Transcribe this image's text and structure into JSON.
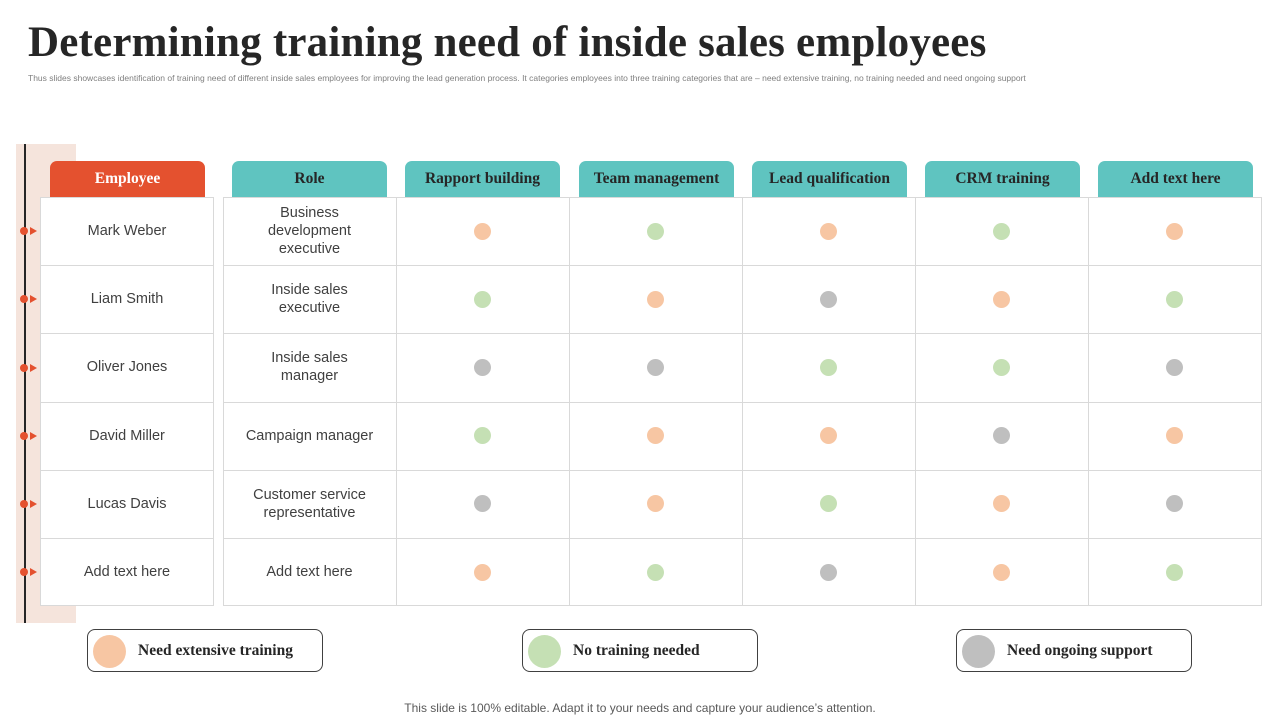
{
  "title": "Determining training need of inside sales employees",
  "subtitle": "Thus slides showcases identification of training need  of different inside sales employees for improving the lead generation  process. It categories employees into three training categories that are – need extensive training, no training needed  and need ongoing support",
  "colors": {
    "extensive": "#f7c6a3",
    "none": "#c5e0b4",
    "ongoing": "#bfbfbf",
    "accent_orange": "#e4512f",
    "accent_teal": "#5fc4c0"
  },
  "headers": {
    "employee": "Employee",
    "role": "Role",
    "skills": [
      "Rapport building",
      "Team management",
      "Lead qualification",
      "CRM training",
      "Add text here"
    ]
  },
  "rows": [
    {
      "employee": "Mark Weber",
      "role": "Business development executive",
      "status": [
        "extensive",
        "none",
        "extensive",
        "none",
        "extensive"
      ]
    },
    {
      "employee": "Liam Smith",
      "role": "Inside sales executive",
      "status": [
        "none",
        "extensive",
        "ongoing",
        "extensive",
        "none"
      ]
    },
    {
      "employee": "Oliver Jones",
      "role": "Inside sales manager",
      "status": [
        "ongoing",
        "ongoing",
        "none",
        "none",
        "ongoing"
      ]
    },
    {
      "employee": "David Miller",
      "role": "Campaign manager",
      "status": [
        "none",
        "extensive",
        "extensive",
        "ongoing",
        "extensive"
      ]
    },
    {
      "employee": "Lucas Davis",
      "role": "Customer service representative",
      "status": [
        "ongoing",
        "extensive",
        "none",
        "extensive",
        "ongoing"
      ]
    },
    {
      "employee": "Add text here",
      "role": "Add text here",
      "status": [
        "extensive",
        "none",
        "ongoing",
        "extensive",
        "none"
      ]
    }
  ],
  "legend": [
    {
      "key": "extensive",
      "label": "Need extensive training"
    },
    {
      "key": "none",
      "label": "No training needed"
    },
    {
      "key": "ongoing",
      "label": "Need ongoing support"
    }
  ],
  "footer": "This slide is 100% editable. Adapt it to your needs and capture your audience’s attention."
}
